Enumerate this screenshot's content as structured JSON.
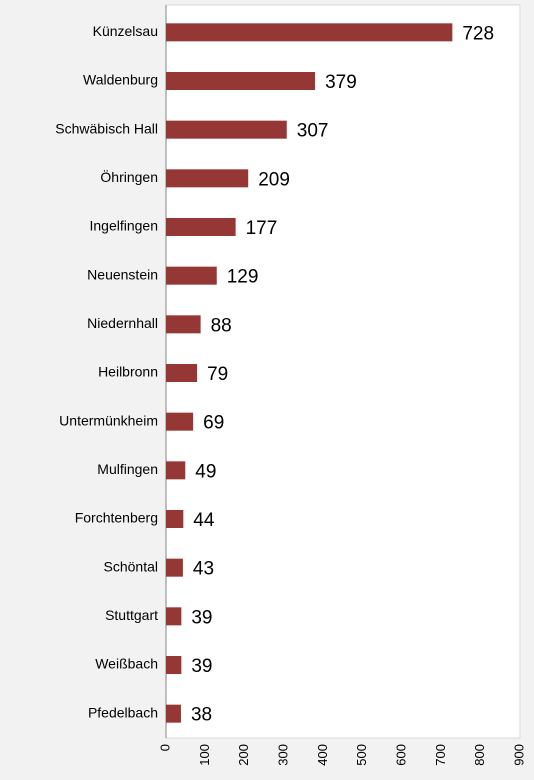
{
  "chart_data": {
    "type": "hbar",
    "categories": [
      "Künzelsau",
      "Waldenburg",
      "Schwäbisch Hall",
      "Öhringen",
      "Ingelfingen",
      "Neuenstein",
      "Niedernhall",
      "Heilbronn",
      "Untermünkheim",
      "Mulfingen",
      "Forchtenberg",
      "Schöntal",
      "Stuttgart",
      "Weißbach",
      "Pfedelbach"
    ],
    "values": [
      728,
      379,
      307,
      209,
      177,
      129,
      88,
      79,
      69,
      49,
      44,
      43,
      39,
      39,
      38
    ],
    "color": "#953735",
    "xlim": [
      0,
      900
    ],
    "xticks": [
      0,
      100,
      200,
      300,
      400,
      500,
      600,
      700,
      800,
      900
    ],
    "grid": false
  }
}
